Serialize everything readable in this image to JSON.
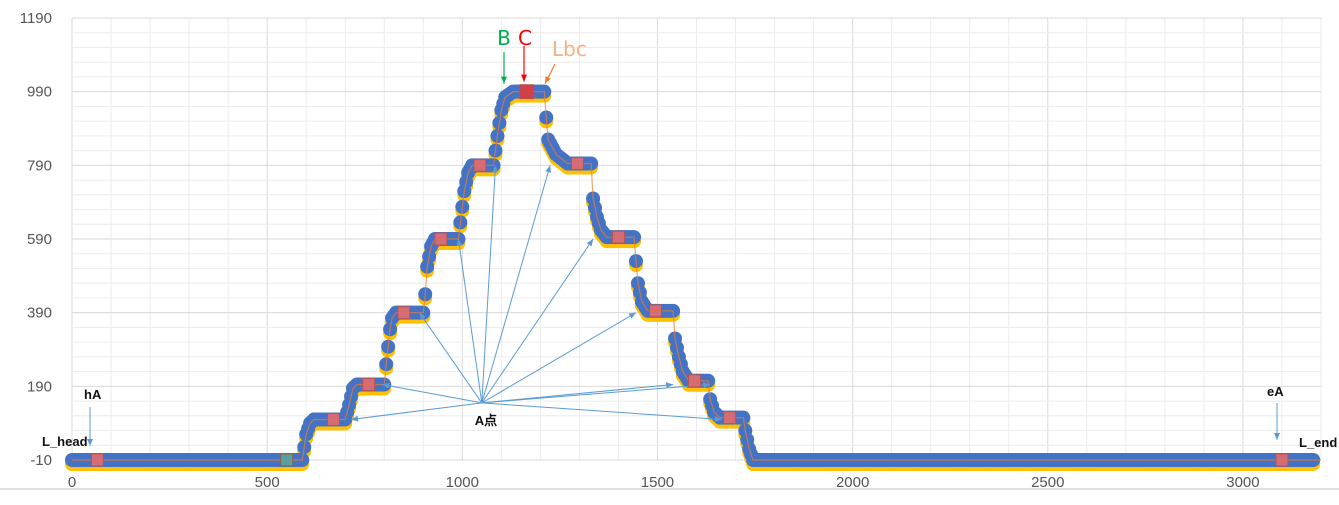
{
  "chart_data": {
    "type": "scatter",
    "title": "",
    "xlabel": "",
    "ylabel": "",
    "xlim": [
      0,
      3200
    ],
    "ylim": [
      -10,
      1190
    ],
    "x_ticks": [
      0,
      500,
      1000,
      1500,
      2000,
      2500,
      3000
    ],
    "y_ticks": [
      -10,
      190,
      390,
      590,
      790,
      990,
      1190
    ],
    "x_ticks_label": [
      "0",
      "500",
      "1000",
      "1500",
      "2000",
      "2500",
      "3000"
    ],
    "y_ticks_label": [
      "-10",
      "190",
      "390",
      "590",
      "790",
      "990",
      "1190"
    ],
    "grid": "vertical and horizontal",
    "legend": "none",
    "colors": {
      "series_main": "#4472C4",
      "series_secondary": "#FFC000",
      "series_line": "#ED7D31",
      "marker_fill": "#E46C6C",
      "marker_teal": "#5BA3A0",
      "arrow": "#5B9BD5",
      "B": "#00B050",
      "C": "#FF0000",
      "Lbc": "#F4B183"
    },
    "profile": [
      [
        0,
        -10
      ],
      [
        590,
        -10
      ],
      [
        600,
        60
      ],
      [
        610,
        90
      ],
      [
        620,
        100
      ],
      [
        700,
        100
      ],
      [
        710,
        140
      ],
      [
        720,
        185
      ],
      [
        730,
        195
      ],
      [
        800,
        195
      ],
      [
        805,
        250
      ],
      [
        815,
        345
      ],
      [
        820,
        375
      ],
      [
        830,
        390
      ],
      [
        900,
        390
      ],
      [
        905,
        440
      ],
      [
        910,
        515
      ],
      [
        920,
        570
      ],
      [
        930,
        590
      ],
      [
        990,
        590
      ],
      [
        995,
        635
      ],
      [
        1005,
        720
      ],
      [
        1015,
        770
      ],
      [
        1025,
        790
      ],
      [
        1080,
        790
      ],
      [
        1090,
        870
      ],
      [
        1100,
        940
      ],
      [
        1110,
        975
      ],
      [
        1130,
        990
      ],
      [
        1210,
        990
      ],
      [
        1215,
        920
      ],
      [
        1220,
        860
      ],
      [
        1230,
        840
      ],
      [
        1240,
        820
      ],
      [
        1270,
        795
      ],
      [
        1330,
        795
      ],
      [
        1335,
        700
      ],
      [
        1345,
        650
      ],
      [
        1355,
        615
      ],
      [
        1370,
        595
      ],
      [
        1440,
        595
      ],
      [
        1445,
        530
      ],
      [
        1450,
        470
      ],
      [
        1460,
        420
      ],
      [
        1475,
        395
      ],
      [
        1540,
        395
      ],
      [
        1545,
        320
      ],
      [
        1555,
        270
      ],
      [
        1565,
        230
      ],
      [
        1580,
        205
      ],
      [
        1630,
        205
      ],
      [
        1635,
        155
      ],
      [
        1645,
        120
      ],
      [
        1660,
        105
      ],
      [
        1720,
        105
      ],
      [
        1725,
        70
      ],
      [
        1735,
        20
      ],
      [
        1745,
        -10
      ],
      [
        3200,
        -10
      ]
    ],
    "markers": [
      {
        "x": 65,
        "y": -10
      },
      {
        "x": 550,
        "y": -10,
        "teal": true
      },
      {
        "x": 670,
        "y": 100
      },
      {
        "x": 760,
        "y": 195
      },
      {
        "x": 850,
        "y": 390
      },
      {
        "x": 945,
        "y": 590
      },
      {
        "x": 1045,
        "y": 790
      },
      {
        "x": 1165,
        "y": 990,
        "strong": true
      },
      {
        "x": 1295,
        "y": 795
      },
      {
        "x": 1400,
        "y": 595
      },
      {
        "x": 1495,
        "y": 395
      },
      {
        "x": 1595,
        "y": 205
      },
      {
        "x": 1685,
        "y": 105
      },
      {
        "x": 3100,
        "y": -10
      }
    ],
    "a_point": {
      "x": 1050,
      "y": 145
    },
    "a_targets": [
      [
        715,
        100
      ],
      [
        795,
        195
      ],
      [
        890,
        390
      ],
      [
        990,
        590
      ],
      [
        1085,
        790
      ],
      [
        1225,
        790
      ],
      [
        1335,
        590
      ],
      [
        1445,
        390
      ],
      [
        1540,
        195
      ],
      [
        1635,
        195
      ],
      [
        1665,
        100
      ]
    ],
    "annotations": {
      "a_point": "A点",
      "b": "B",
      "c": "C",
      "lbc": "Lbc",
      "h_a": "hA",
      "e_a": "eA",
      "l_head": "L_head",
      "l_end": "L_end"
    }
  }
}
